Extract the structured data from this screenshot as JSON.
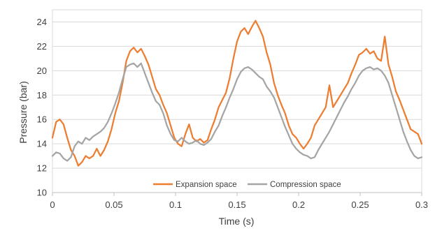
{
  "chart_data": {
    "type": "line",
    "title": "",
    "xlabel": "Time (s)",
    "ylabel": "Pressure (bar)",
    "xlim": [
      0,
      0.3
    ],
    "ylim": [
      10,
      25
    ],
    "x_ticks": [
      0,
      0.05,
      0.1,
      0.15,
      0.2,
      0.25,
      0.3
    ],
    "x_tick_labels": [
      "0",
      "0.05",
      "0.1",
      "0.15",
      "0.2",
      "0.25",
      "0.3"
    ],
    "y_ticks": [
      10,
      12,
      14,
      16,
      18,
      20,
      22,
      24
    ],
    "y_tick_labels": [
      "10",
      "12",
      "14",
      "16",
      "18",
      "20",
      "22",
      "24"
    ],
    "grid": "horizontal",
    "legend": "bottom-center-inside",
    "colors": {
      "expansion": "#ED7D31",
      "compression": "#A5A5A5",
      "grid": "#D9D9D9",
      "axis": "#BFBFBF"
    },
    "series": [
      {
        "name": "Expansion space",
        "color": "#ED7D31",
        "x": [
          0,
          0.003,
          0.006,
          0.009,
          0.012,
          0.015,
          0.018,
          0.021,
          0.024,
          0.027,
          0.03,
          0.033,
          0.036,
          0.039,
          0.042,
          0.045,
          0.048,
          0.051,
          0.054,
          0.057,
          0.06,
          0.063,
          0.066,
          0.069,
          0.072,
          0.075,
          0.078,
          0.081,
          0.084,
          0.087,
          0.09,
          0.093,
          0.096,
          0.099,
          0.102,
          0.105,
          0.108,
          0.111,
          0.114,
          0.117,
          0.12,
          0.123,
          0.126,
          0.129,
          0.132,
          0.135,
          0.138,
          0.141,
          0.144,
          0.147,
          0.15,
          0.153,
          0.156,
          0.159,
          0.162,
          0.165,
          0.168,
          0.171,
          0.174,
          0.177,
          0.18,
          0.183,
          0.186,
          0.189,
          0.192,
          0.195,
          0.198,
          0.201,
          0.204,
          0.207,
          0.21,
          0.213,
          0.216,
          0.219,
          0.222,
          0.225,
          0.228,
          0.231,
          0.234,
          0.237,
          0.24,
          0.243,
          0.246,
          0.249,
          0.252,
          0.255,
          0.258,
          0.261,
          0.264,
          0.267,
          0.27,
          0.273,
          0.276,
          0.279,
          0.282,
          0.285,
          0.288,
          0.291,
          0.294,
          0.297,
          0.3
        ],
        "y": [
          14.5,
          15.8,
          16.0,
          15.6,
          14.5,
          13.5,
          13.0,
          12.2,
          12.5,
          13.0,
          12.8,
          13.0,
          13.6,
          13.0,
          13.5,
          14.2,
          15.2,
          16.5,
          17.5,
          19.0,
          20.8,
          21.6,
          21.9,
          21.5,
          21.8,
          21.2,
          20.5,
          19.5,
          18.5,
          18.0,
          17.2,
          16.5,
          15.5,
          14.5,
          14.0,
          13.8,
          14.8,
          15.6,
          14.5,
          14.2,
          14.4,
          14.1,
          14.3,
          15.2,
          16.0,
          17.0,
          17.6,
          18.2,
          19.4,
          21.0,
          22.4,
          23.2,
          23.5,
          23.0,
          23.6,
          24.1,
          23.5,
          22.8,
          21.5,
          20.5,
          19.0,
          18.0,
          17.2,
          16.5,
          15.5,
          14.8,
          14.5,
          14.0,
          13.6,
          14.0,
          14.5,
          15.5,
          16.0,
          16.5,
          17.0,
          18.8,
          17.0,
          17.5,
          18.0,
          18.5,
          19.0,
          19.8,
          20.5,
          21.3,
          21.5,
          21.8,
          21.4,
          21.6,
          21.0,
          20.8,
          22.8,
          20.5,
          19.5,
          18.3,
          17.6,
          16.8,
          16.0,
          15.2,
          15.0,
          14.8,
          14.0
        ]
      },
      {
        "name": "Compression space",
        "color": "#A5A5A5",
        "x": [
          0,
          0.003,
          0.006,
          0.009,
          0.012,
          0.015,
          0.018,
          0.021,
          0.024,
          0.027,
          0.03,
          0.033,
          0.036,
          0.039,
          0.042,
          0.045,
          0.048,
          0.051,
          0.054,
          0.057,
          0.06,
          0.063,
          0.066,
          0.069,
          0.072,
          0.075,
          0.078,
          0.081,
          0.084,
          0.087,
          0.09,
          0.093,
          0.096,
          0.099,
          0.102,
          0.105,
          0.108,
          0.111,
          0.114,
          0.117,
          0.12,
          0.123,
          0.126,
          0.129,
          0.132,
          0.135,
          0.138,
          0.141,
          0.144,
          0.147,
          0.15,
          0.153,
          0.156,
          0.159,
          0.162,
          0.165,
          0.168,
          0.171,
          0.174,
          0.177,
          0.18,
          0.183,
          0.186,
          0.189,
          0.192,
          0.195,
          0.198,
          0.201,
          0.204,
          0.207,
          0.21,
          0.213,
          0.216,
          0.219,
          0.222,
          0.225,
          0.228,
          0.231,
          0.234,
          0.237,
          0.24,
          0.243,
          0.246,
          0.249,
          0.252,
          0.255,
          0.258,
          0.261,
          0.264,
          0.267,
          0.27,
          0.273,
          0.276,
          0.279,
          0.282,
          0.285,
          0.288,
          0.291,
          0.294,
          0.297,
          0.3
        ],
        "y": [
          13.0,
          13.3,
          13.2,
          12.8,
          12.6,
          12.9,
          13.8,
          14.2,
          14.0,
          14.5,
          14.3,
          14.6,
          14.8,
          15.0,
          15.3,
          15.8,
          16.5,
          17.3,
          18.2,
          19.3,
          20.3,
          20.5,
          20.6,
          20.3,
          20.6,
          19.8,
          19.0,
          18.2,
          17.5,
          17.2,
          16.5,
          15.5,
          14.8,
          14.3,
          14.2,
          14.5,
          14.2,
          14.0,
          14.1,
          14.3,
          14.0,
          13.9,
          14.1,
          14.4,
          15.0,
          15.5,
          16.3,
          17.0,
          17.8,
          18.5,
          19.3,
          19.9,
          20.2,
          20.3,
          20.1,
          19.8,
          19.5,
          19.3,
          18.7,
          18.3,
          17.8,
          17.0,
          16.2,
          15.4,
          14.7,
          14.0,
          13.6,
          13.3,
          13.1,
          13.0,
          12.8,
          12.9,
          13.5,
          14.0,
          14.5,
          15.0,
          15.6,
          16.2,
          16.8,
          17.4,
          17.9,
          18.5,
          19.0,
          19.6,
          20.0,
          20.2,
          20.3,
          20.1,
          20.2,
          20.0,
          19.6,
          19.0,
          18.0,
          17.0,
          16.0,
          15.0,
          14.2,
          13.5,
          13.0,
          12.8,
          12.9
        ]
      }
    ]
  }
}
